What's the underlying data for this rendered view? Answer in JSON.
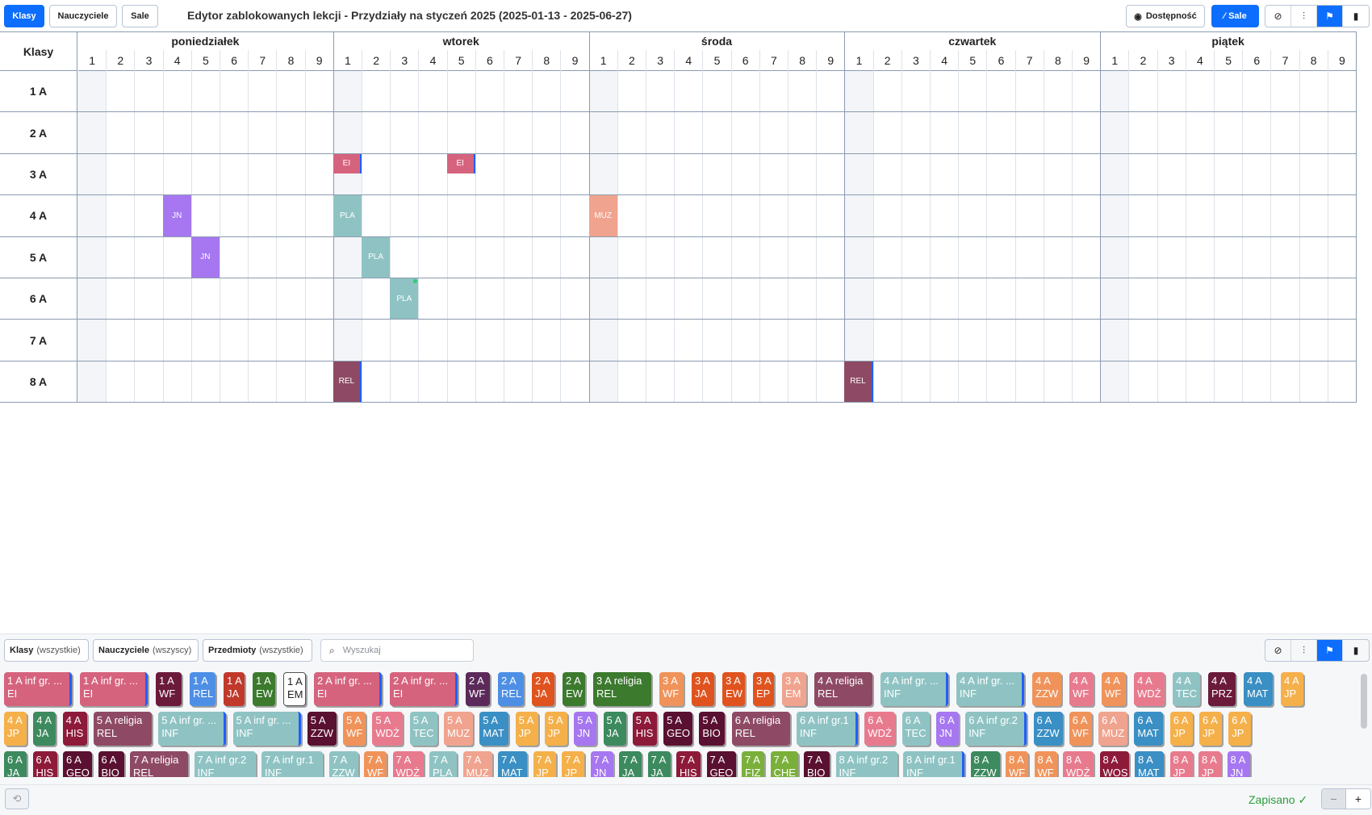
{
  "toolbar": {
    "klasy": "Klasy",
    "nauczyciele": "Nauczyciele",
    "sale": "Sale",
    "title": "Edytor zablokowanych lekcji - Przydziały na styczeń 2025 (2025-01-13 - 2025-06-27)",
    "dostepnosc": "Dostępność",
    "sale2": "Sale",
    "icons": [
      "bell-off-icon",
      "sliders-icon",
      "layout-icon",
      "delete-icon"
    ],
    "accent": "#0d6efd"
  },
  "grid": {
    "corner": "Klasy",
    "days": [
      "poniedziałek",
      "wtorek",
      "środa",
      "czwartek",
      "piątek"
    ],
    "periods": [
      "1",
      "2",
      "3",
      "4",
      "5",
      "6",
      "7",
      "8",
      "9"
    ],
    "rows": [
      "1 A",
      "2 A",
      "3 A",
      "4 A",
      "5 A",
      "6 A",
      "7 A",
      "8 A"
    ],
    "lessons": [
      {
        "row": 2,
        "day": 1,
        "period": 0,
        "label": "EI",
        "color": "#d6637e",
        "edge": true
      },
      {
        "row": 2,
        "day": 1,
        "period": 4,
        "label": "EI",
        "color": "#d6637e",
        "edge": true
      },
      {
        "row": 3,
        "day": 0,
        "period": 3,
        "label": "JN",
        "color": "#a677f0",
        "edge": false
      },
      {
        "row": 3,
        "day": 1,
        "period": 0,
        "label": "PLA",
        "color": "#8fc3c3",
        "edge": false
      },
      {
        "row": 3,
        "day": 2,
        "period": 0,
        "label": "MUZ",
        "color": "#f0a38e",
        "edge": false
      },
      {
        "row": 4,
        "day": 0,
        "period": 4,
        "label": "JN",
        "color": "#a677f0",
        "edge": false
      },
      {
        "row": 4,
        "day": 1,
        "period": 1,
        "label": "PLA",
        "color": "#8fc3c3",
        "edge": false
      },
      {
        "row": 5,
        "day": 1,
        "period": 2,
        "label": "PLA",
        "color": "#8fc3c3",
        "edge": false,
        "dot": true
      },
      {
        "row": 7,
        "day": 1,
        "period": 0,
        "label": "REL",
        "color": "#8e4a64",
        "edge": true
      },
      {
        "row": 7,
        "day": 3,
        "period": 0,
        "label": "REL",
        "color": "#8e4a64",
        "edge": true
      }
    ]
  },
  "filters": {
    "klasy": "Klasy",
    "klasy_sub": "(wszystkie)",
    "nauczyciele": "Nauczyciele",
    "nauczyciele_sub": "(wszyscy)",
    "przedmioty": "Przedmioty",
    "przedmioty_sub": "(wszystkie)",
    "search_placeholder": "Wyszukaj"
  },
  "chips": [
    {
      "l1": "1 A inf gr. ...",
      "l2": "EI",
      "c": "#d6637e",
      "w": 84,
      "edge": true
    },
    {
      "l1": "1 A inf gr. ...",
      "l2": "EI",
      "c": "#d6637e",
      "w": 84,
      "edge": true
    },
    {
      "l1": "1 A",
      "l2": "WF",
      "c": "#6b1a3a",
      "w": 32
    },
    {
      "l1": "1 A",
      "l2": "REL",
      "c": "#4e8fe6",
      "w": 32
    },
    {
      "l1": "1 A",
      "l2": "JA",
      "c": "#c0392b",
      "w": 26
    },
    {
      "l1": "1 A",
      "l2": "EW",
      "c": "#3c7a2e",
      "w": 28
    },
    {
      "l1": "1 A",
      "l2": "EM",
      "c": "#fff",
      "w": 28,
      "light": true
    },
    {
      "l1": "2 A inf gr. ...",
      "l2": "EI",
      "c": "#d6637e",
      "w": 84,
      "edge": true
    },
    {
      "l1": "2 A inf gr. ...",
      "l2": "EI",
      "c": "#d6637e",
      "w": 84,
      "edge": true
    },
    {
      "l1": "2 A",
      "l2": "WF",
      "c": "#5b2a5a",
      "w": 30
    },
    {
      "l1": "2 A",
      "l2": "REL",
      "c": "#4e8fe6",
      "w": 32
    },
    {
      "l1": "2 A",
      "l2": "JA",
      "c": "#e0531e",
      "w": 28
    },
    {
      "l1": "2 A",
      "l2": "EW",
      "c": "#3c7a2e",
      "w": 28
    },
    {
      "l1": "3 A religia",
      "l2": "REL",
      "c": "#3c7a2e",
      "w": 72
    },
    {
      "l1": "3 A",
      "l2": "WF",
      "c": "#f0935a",
      "w": 30
    },
    {
      "l1": "3 A",
      "l2": "JA",
      "c": "#e0531e",
      "w": 28
    },
    {
      "l1": "3 A",
      "l2": "EW",
      "c": "#e0531e",
      "w": 28
    },
    {
      "l1": "3 A",
      "l2": "EP",
      "c": "#e0531e",
      "w": 26
    },
    {
      "l1": "3 A",
      "l2": "EM",
      "c": "#f0a38e",
      "w": 30
    },
    {
      "l1": "4 A religia",
      "l2": "REL",
      "c": "#8e4a64",
      "w": 72
    },
    {
      "l1": "4 A inf gr. ...",
      "l2": "INF",
      "c": "#8fc3c3",
      "w": 84,
      "edge": true
    },
    {
      "l1": "4 A inf gr. ...",
      "l2": "INF",
      "c": "#8fc3c3",
      "w": 84,
      "edge": true
    },
    {
      "l1": "4 A",
      "l2": "ZZW",
      "c": "#f0935a",
      "w": 36
    },
    {
      "l1": "4 A",
      "l2": "WF",
      "c": "#e87a8e",
      "w": 30
    },
    {
      "l1": "4 A",
      "l2": "WF",
      "c": "#f0935a",
      "w": 30
    },
    {
      "l1": "4 A",
      "l2": "WDŻ",
      "c": "#e87a8e",
      "w": 38
    },
    {
      "l1": "4 A",
      "l2": "TEC",
      "c": "#8fc3c3",
      "w": 34
    },
    {
      "l1": "4 A",
      "l2": "PRZ",
      "c": "#6b1a3a",
      "w": 34
    },
    {
      "l1": "4 A",
      "l2": "MAT",
      "c": "#3a8fc4",
      "w": 36
    },
    {
      "l1": "4 A",
      "l2": "JP",
      "c": "#f5b04a",
      "w": 28
    }
  ],
  "chips_row2": [
    {
      "l1": "4 A",
      "l2": "JP",
      "c": "#f5b04a",
      "w": 28
    },
    {
      "l1": "4 A",
      "l2": "JA",
      "c": "#3c8a5e",
      "w": 28
    },
    {
      "l1": "4 A",
      "l2": "HIS",
      "c": "#8e1a3a",
      "w": 30
    },
    {
      "l1": "5 A religia",
      "l2": "REL",
      "c": "#8e4a64",
      "w": 72
    },
    {
      "l1": "5 A inf gr. ...",
      "l2": "INF",
      "c": "#8fc3c3",
      "w": 84,
      "edge": true
    },
    {
      "l1": "5 A inf gr. ...",
      "l2": "INF",
      "c": "#8fc3c3",
      "w": 84,
      "edge": true
    },
    {
      "l1": "5 A",
      "l2": "ZZW",
      "c": "#5a1030",
      "w": 36
    },
    {
      "l1": "5 A",
      "l2": "WF",
      "c": "#f0935a",
      "w": 28
    },
    {
      "l1": "5 A",
      "l2": "WDŻ",
      "c": "#e87a8e",
      "w": 38
    },
    {
      "l1": "5 A",
      "l2": "TEC",
      "c": "#8fc3c3",
      "w": 34
    },
    {
      "l1": "5 A",
      "l2": "MUZ",
      "c": "#f0a38e",
      "w": 36
    },
    {
      "l1": "5 A",
      "l2": "MAT",
      "c": "#3a8fc4",
      "w": 36
    },
    {
      "l1": "5 A",
      "l2": "JP",
      "c": "#f5b04a",
      "w": 28
    },
    {
      "l1": "5 A",
      "l2": "JP",
      "c": "#f5b04a",
      "w": 28
    },
    {
      "l1": "5 A",
      "l2": "JN",
      "c": "#a677f0",
      "w": 28
    },
    {
      "l1": "5 A",
      "l2": "JA",
      "c": "#3c8a5e",
      "w": 28
    },
    {
      "l1": "5 A",
      "l2": "HIS",
      "c": "#8e1a3a",
      "w": 30
    },
    {
      "l1": "5 A",
      "l2": "GEO",
      "c": "#5a1030",
      "w": 36
    },
    {
      "l1": "5 A",
      "l2": "BIO",
      "c": "#5a1030",
      "w": 32
    },
    {
      "l1": "6 A religia",
      "l2": "REL",
      "c": "#8e4a64",
      "w": 72
    },
    {
      "l1": "6 A inf gr.1",
      "l2": "INF",
      "c": "#8fc3c3",
      "w": 76,
      "edge": true
    },
    {
      "l1": "6 A",
      "l2": "WDŻ",
      "c": "#e87a8e",
      "w": 38
    },
    {
      "l1": "6 A",
      "l2": "TEC",
      "c": "#8fc3c3",
      "w": 34
    },
    {
      "l1": "6 A",
      "l2": "JN",
      "c": "#a677f0",
      "w": 28
    },
    {
      "l1": "6 A inf gr.2",
      "l2": "INF",
      "c": "#8fc3c3",
      "w": 76,
      "edge": true
    },
    {
      "l1": "6 A",
      "l2": "ZZW",
      "c": "#3a8fc4",
      "w": 36
    },
    {
      "l1": "6 A",
      "l2": "WF",
      "c": "#f0935a",
      "w": 28
    },
    {
      "l1": "6 A",
      "l2": "MUZ",
      "c": "#f0a38e",
      "w": 36
    },
    {
      "l1": "6 A",
      "l2": "MAT",
      "c": "#3a8fc4",
      "w": 36
    },
    {
      "l1": "6 A",
      "l2": "JP",
      "c": "#f5b04a",
      "w": 28
    },
    {
      "l1": "6 A",
      "l2": "JP",
      "c": "#f5b04a",
      "w": 28
    },
    {
      "l1": "6 A",
      "l2": "JP",
      "c": "#f5b04a",
      "w": 28
    }
  ],
  "chips_row3": [
    {
      "l1": "6 A",
      "l2": "JA",
      "c": "#3c8a5e",
      "w": 28
    },
    {
      "l1": "6 A",
      "l2": "HIS",
      "c": "#8e1a3a",
      "w": 30
    },
    {
      "l1": "6 A",
      "l2": "GEO",
      "c": "#5a1030",
      "w": 36
    },
    {
      "l1": "6 A",
      "l2": "BIO",
      "c": "#5a1030",
      "w": 32
    },
    {
      "l1": "7 A religia",
      "l2": "REL",
      "c": "#8e4a64",
      "w": 72
    },
    {
      "l1": "7 A inf gr.2",
      "l2": "INF",
      "c": "#8fc3c3",
      "w": 76
    },
    {
      "l1": "7 A inf gr.1",
      "l2": "INF",
      "c": "#8fc3c3",
      "w": 76
    },
    {
      "l1": "7 A",
      "l2": "ZZW",
      "c": "#8fc3c3",
      "w": 36
    },
    {
      "l1": "7 A",
      "l2": "WF",
      "c": "#f0935a",
      "w": 28
    },
    {
      "l1": "7 A",
      "l2": "WDŻ",
      "c": "#e87a8e",
      "w": 38
    },
    {
      "l1": "7 A",
      "l2": "PLA",
      "c": "#8fc3c3",
      "w": 34
    },
    {
      "l1": "7 A",
      "l2": "MUZ",
      "c": "#f0a38e",
      "w": 36
    },
    {
      "l1": "7 A",
      "l2": "MAT",
      "c": "#3a8fc4",
      "w": 36
    },
    {
      "l1": "7 A",
      "l2": "JP",
      "c": "#f5b04a",
      "w": 28
    },
    {
      "l1": "7 A",
      "l2": "JP",
      "c": "#f5b04a",
      "w": 28
    },
    {
      "l1": "7 A",
      "l2": "JN",
      "c": "#a677f0",
      "w": 28
    },
    {
      "l1": "7 A",
      "l2": "JA",
      "c": "#3c8a5e",
      "w": 28
    },
    {
      "l1": "7 A",
      "l2": "JA",
      "c": "#3c8a5e",
      "w": 28
    },
    {
      "l1": "7 A",
      "l2": "HIS",
      "c": "#8e1a3a",
      "w": 30
    },
    {
      "l1": "7 A",
      "l2": "GEO",
      "c": "#5a1030",
      "w": 36
    },
    {
      "l1": "7 A",
      "l2": "FIZ",
      "c": "#7ab03a",
      "w": 28
    },
    {
      "l1": "7 A",
      "l2": "CHE",
      "c": "#7ab03a",
      "w": 34
    },
    {
      "l1": "7 A",
      "l2": "BIO",
      "c": "#5a1030",
      "w": 32
    },
    {
      "l1": "8 A inf gr.2",
      "l2": "INF",
      "c": "#8fc3c3",
      "w": 76
    },
    {
      "l1": "8 A inf gr.1",
      "l2": "INF",
      "c": "#8fc3c3",
      "w": 76,
      "edge": true
    },
    {
      "l1": "8 A",
      "l2": "ZZW",
      "c": "#3c8a5e",
      "w": 36
    },
    {
      "l1": "8 A",
      "l2": "WF",
      "c": "#f0935a",
      "w": 28
    },
    {
      "l1": "8 A",
      "l2": "WF",
      "c": "#f0935a",
      "w": 28
    },
    {
      "l1": "8 A",
      "l2": "WDŻ",
      "c": "#e87a8e",
      "w": 38
    },
    {
      "l1": "8 A",
      "l2": "WOS",
      "c": "#8e1a3a",
      "w": 36
    },
    {
      "l1": "8 A",
      "l2": "MAT",
      "c": "#3a8fc4",
      "w": 36
    },
    {
      "l1": "8 A",
      "l2": "JP",
      "c": "#e87a8e",
      "w": 28
    },
    {
      "l1": "8 A",
      "l2": "JP",
      "c": "#e87a8e",
      "w": 28
    },
    {
      "l1": "8 A",
      "l2": "JN",
      "c": "#a677f0",
      "w": 28
    }
  ],
  "footer": {
    "saved": "Zapisano ✓",
    "zoom_out": "−",
    "zoom_in": "+",
    "undo": "⟲"
  }
}
